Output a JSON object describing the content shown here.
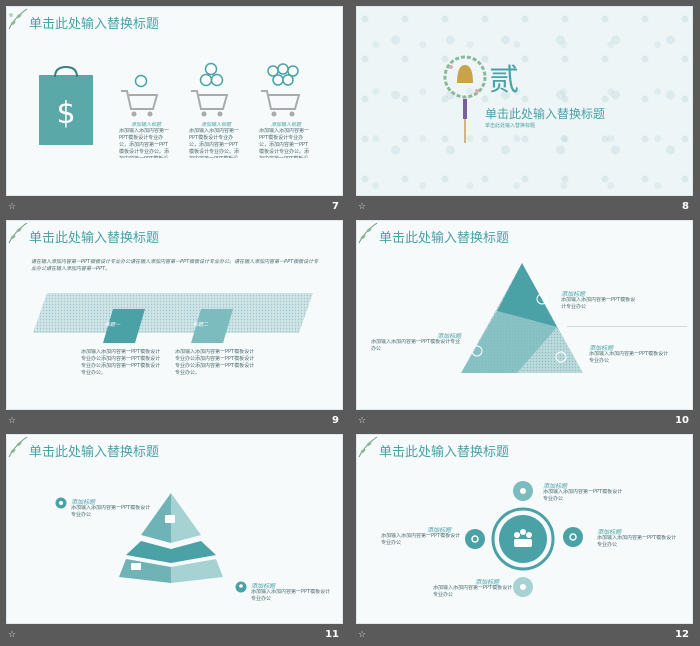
{
  "slides": [
    {
      "number": "7",
      "title": "单击此处输入替换标题",
      "items": [
        {
          "label": "添加输入标题",
          "text": "添加输入添加内容第一PPT模板设计专业办公，添加内容第一PPT模板设计专业办公。添加内容第一PPT模板设计专业办公"
        },
        {
          "label": "添加输入标题",
          "text": "添加输入添加内容第一PPT模板设计专业办公，添加内容第一PPT模板设计专业办公。添加内容第一PPT模板设计专业办公"
        },
        {
          "label": "添加输入标题",
          "text": "添加输入添加内容第一PPT模板设计专业办公，添加内容第一PPT模板设计专业办公。添加内容第一PPT模板设计专业办公"
        }
      ]
    },
    {
      "number": "8",
      "section_char": "贰",
      "title": "单击此处输入替换标题",
      "subtitle": "单击此处输入替换标题"
    },
    {
      "number": "9",
      "title": "单击此处输入替换标题",
      "paragraph": "请在输入添加内容第一PPT模板设计专业办公请在输入添加内容第一PPT模板设计专业办公。请在输入添加内容第一PPT模板设计专业办公请在输入添加内容第一PPT。",
      "tags": [
        "标题一",
        "标题二"
      ],
      "blocks": [
        "添加输入添加内容第一PPT模板设计专业办公添加内容第一PPT模板设计专业办公添加内容第一PPT模板设计专业办公。",
        "添加输入添加内容第一PPT模板设计专业办公添加内容第一PPT模板设计专业办公添加内容第一PPT模板设计专业办公。"
      ]
    },
    {
      "number": "10",
      "title": "单击此处输入替换标题",
      "labels": [
        {
          "head": "添加标题",
          "text": "添加输入添加内容第一PPT模板设计专业办公"
        },
        {
          "head": "添加标题",
          "text": "添加输入添加内容第一PPT模板设计专业办公"
        },
        {
          "head": "添加标题",
          "text": "添加输入添加内容第一PPT模板设计专业办公"
        }
      ]
    },
    {
      "number": "11",
      "title": "单击此处输入替换标题",
      "labels": [
        {
          "head": "添加标题",
          "text": "添加输入添加内容第一PPT模板设计专业办公"
        },
        {
          "head": "添加标题",
          "text": "添加输入添加内容第一PPT模板设计专业办公"
        }
      ]
    },
    {
      "number": "12",
      "title": "单击此处输入替换标题",
      "labels": [
        {
          "head": "添加标题",
          "text": "添加输入添加内容第一PPT模板设计专业办公"
        },
        {
          "head": "添加标题",
          "text": "添加输入添加内容第一PPT模板设计专业办公"
        },
        {
          "head": "添加标题",
          "text": "添加输入添加内容第一PPT模板设计专业办公"
        },
        {
          "head": "添加标题",
          "text": "添加输入添加内容第一PPT模板设计专业办公"
        }
      ]
    }
  ],
  "colors": {
    "teal": "#4aa1a6",
    "teal_dark": "#3f8f94",
    "bg": "#5a5a5a"
  },
  "footer_icon": "star-icon"
}
